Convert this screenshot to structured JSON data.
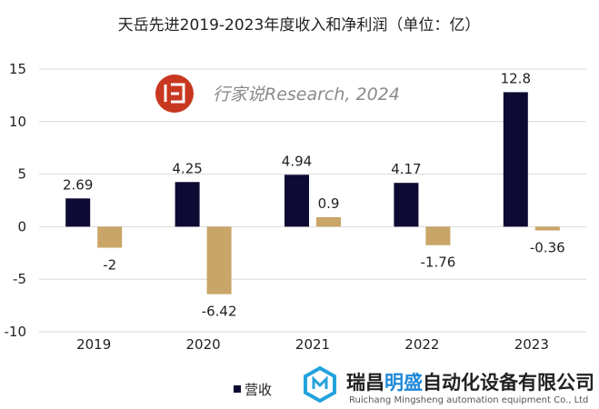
{
  "chart_data": {
    "type": "bar",
    "title": "天岳先进2019-2023年度收入和净利润（单位：亿）",
    "categories": [
      "2019",
      "2020",
      "2021",
      "2022",
      "2023"
    ],
    "series": [
      {
        "name": "营收",
        "values": [
          2.69,
          4.25,
          4.94,
          4.17,
          12.8
        ],
        "color": "#0d0b33"
      },
      {
        "values": [
          -2,
          -6.42,
          0.9,
          -1.76,
          -0.36
        ],
        "color": "#c9a567"
      }
    ],
    "ylim": [
      -10,
      15
    ],
    "yticks": [
      15,
      10,
      5,
      0,
      -5,
      -10
    ],
    "ytick_labels": [
      "15",
      "10",
      "5",
      "0",
      "-5",
      "-10"
    ],
    "data_labels": [
      [
        "2.69",
        "4.25",
        "4.94",
        "4.17",
        "12.8"
      ],
      [
        "-2",
        "-6.42",
        "0.9",
        "-1.76",
        "-0.36"
      ]
    ],
    "grid": true,
    "legend_position": "bottom-left"
  },
  "watermark": {
    "icon_name": "xingjiashuo-logo-icon",
    "text": "行家说Research, 2024",
    "color": "#c8371f"
  },
  "company_logo": {
    "icon_name": "ruichang-mingsheng-logo-icon",
    "name_prefix": "瑞昌",
    "name_highlight": "明盛",
    "name_suffix": "自动化设备有限公司",
    "english": "Ruichang Mingsheng automation equipment Co., Ltd",
    "prefix_color": "#222222",
    "highlight_color": "#1e88d8"
  }
}
